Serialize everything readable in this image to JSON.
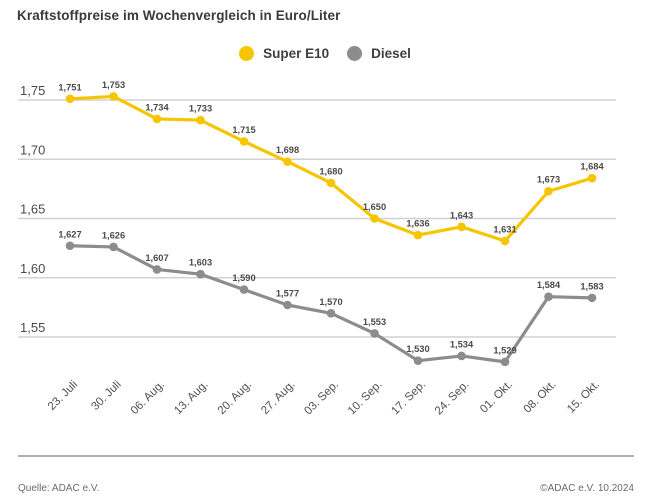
{
  "title": "Kraftstoffpreise im Wochenvergleich in Euro/Liter",
  "footer": {
    "source": "Quelle: ADAC e.V.",
    "copyright": "©ADAC e.V. 10.2024"
  },
  "colors": {
    "grid": "#d2d2d2",
    "tick_text": "#4a4a4a",
    "point_label_text": "#4a4a4a",
    "x_label_text": "#4f4f4f"
  },
  "chart_data": {
    "type": "line",
    "title": "Kraftstoffpreise im Wochenvergleich in Euro/Liter",
    "xlabel": "",
    "ylabel": "",
    "grid": true,
    "legend_position": "top-center",
    "ylim": [
      1.52,
      1.77
    ],
    "x": [
      "23. Juli",
      "30. Juli",
      "06. Aug.",
      "13. Aug.",
      "20. Aug.",
      "27. Aug.",
      "03. Sep.",
      "10. Sep.",
      "17. Sep.",
      "24. Sep.",
      "01. Okt.",
      "08. Okt.",
      "15. Okt."
    ],
    "series": [
      {
        "name": "Super E10",
        "color": "#f7c500",
        "values": [
          1.751,
          1.753,
          1.734,
          1.733,
          1.715,
          1.698,
          1.68,
          1.65,
          1.636,
          1.643,
          1.631,
          1.673,
          1.684
        ]
      },
      {
        "name": "Diesel",
        "color": "#8c8c8c",
        "values": [
          1.627,
          1.626,
          1.607,
          1.603,
          1.59,
          1.577,
          1.57,
          1.553,
          1.53,
          1.534,
          1.529,
          1.584,
          1.583
        ]
      }
    ],
    "y_ticks": [
      {
        "value": 1.75,
        "label": "1,75"
      },
      {
        "value": 1.7,
        "label": "1,70"
      },
      {
        "value": 1.65,
        "label": "1,65"
      },
      {
        "value": 1.6,
        "label": "1,60"
      },
      {
        "value": 1.55,
        "label": "1,55"
      }
    ],
    "point_label_format": "comma-3-decimals"
  }
}
